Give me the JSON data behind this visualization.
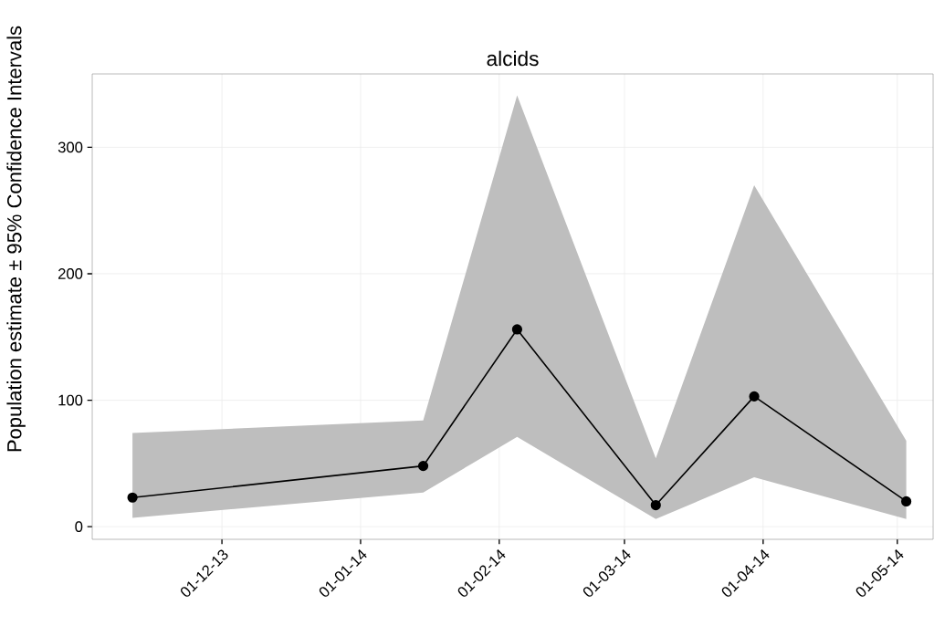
{
  "chart_data": {
    "type": "line",
    "title": "alcids",
    "ylabel": "Population estimate ± 95% Confidence Intervals",
    "x": [
      "2013-11-11",
      "2014-01-15",
      "2014-02-05",
      "2014-03-08",
      "2014-03-30",
      "2014-05-03"
    ],
    "series": [
      {
        "color": "#000000",
        "values": [
          23,
          48,
          156,
          17,
          103,
          20
        ],
        "lower": [
          7,
          27,
          71,
          6,
          39,
          6
        ],
        "upper": [
          74,
          84,
          341,
          54,
          270,
          68
        ]
      }
    ],
    "xlim": [
      "2013-11-02",
      "2014-05-09"
    ],
    "xticks": [
      {
        "value": "2013-12-01",
        "label": "01-12-13"
      },
      {
        "value": "2014-01-01",
        "label": "01-01-14"
      },
      {
        "value": "2014-02-01",
        "label": "01-02-14"
      },
      {
        "value": "2014-03-01",
        "label": "01-03-14"
      },
      {
        "value": "2014-04-01",
        "label": "01-04-14"
      },
      {
        "value": "2014-05-01",
        "label": "01-05-14"
      }
    ],
    "ylim": [
      -10,
      358
    ],
    "yticks": [
      0,
      100,
      200,
      300
    ],
    "grid": true,
    "marker": "circle",
    "line_style": "solid"
  }
}
